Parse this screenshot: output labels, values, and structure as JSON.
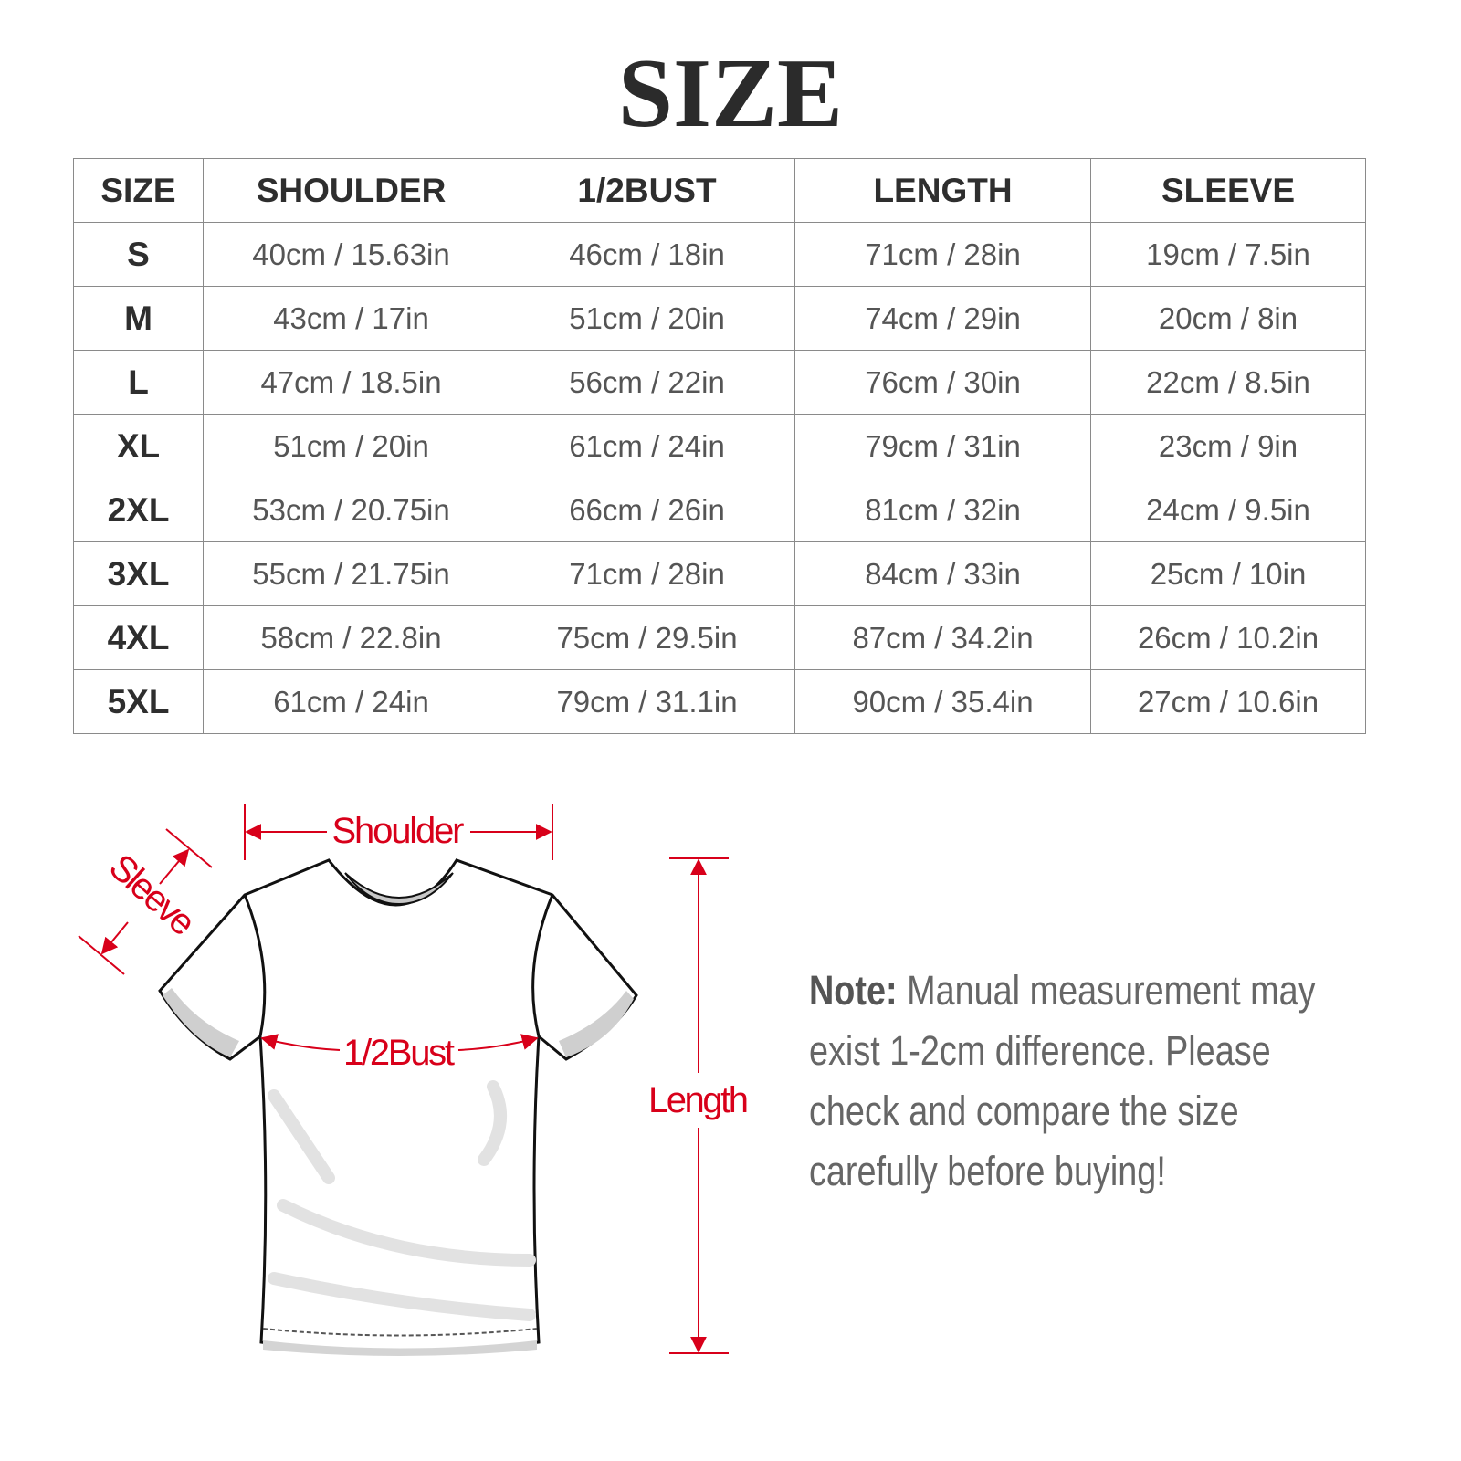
{
  "title": "SIZE",
  "table": {
    "headers": [
      "SIZE",
      "SHOULDER",
      "1/2BUST",
      "LENGTH",
      "SLEEVE"
    ],
    "rows": [
      [
        "S",
        "40cm / 15.63in",
        "46cm / 18in",
        "71cm / 28in",
        "19cm / 7.5in"
      ],
      [
        "M",
        "43cm / 17in",
        "51cm / 20in",
        "74cm / 29in",
        "20cm / 8in"
      ],
      [
        "L",
        "47cm / 18.5in",
        "56cm / 22in",
        "76cm / 30in",
        "22cm / 8.5in"
      ],
      [
        "XL",
        "51cm / 20in",
        "61cm / 24in",
        "79cm / 31in",
        "23cm / 9in"
      ],
      [
        "2XL",
        "53cm / 20.75in",
        "66cm / 26in",
        "81cm / 32in",
        "24cm / 9.5in"
      ],
      [
        "3XL",
        "55cm / 21.75in",
        "71cm / 28in",
        "84cm / 33in",
        "25cm / 10in"
      ],
      [
        "4XL",
        "58cm / 22.8in",
        "75cm / 29.5in",
        "87cm / 34.2in",
        "26cm / 10.2in"
      ],
      [
        "5XL",
        "61cm / 24in",
        "79cm / 31.1in",
        "90cm / 35.4in",
        "27cm / 10.6in"
      ]
    ]
  },
  "diagram": {
    "shoulder_label": "Shoulder",
    "sleeve_label": "Sleeve",
    "bust_label": "1/2Bust",
    "length_label": "Length",
    "accent_color": "#d8001a"
  },
  "note": {
    "label": "Note:",
    "lines": [
      "Manual measurement may",
      "exist 1-2cm difference. Please",
      "check and compare the size",
      "carefully before buying!"
    ]
  }
}
